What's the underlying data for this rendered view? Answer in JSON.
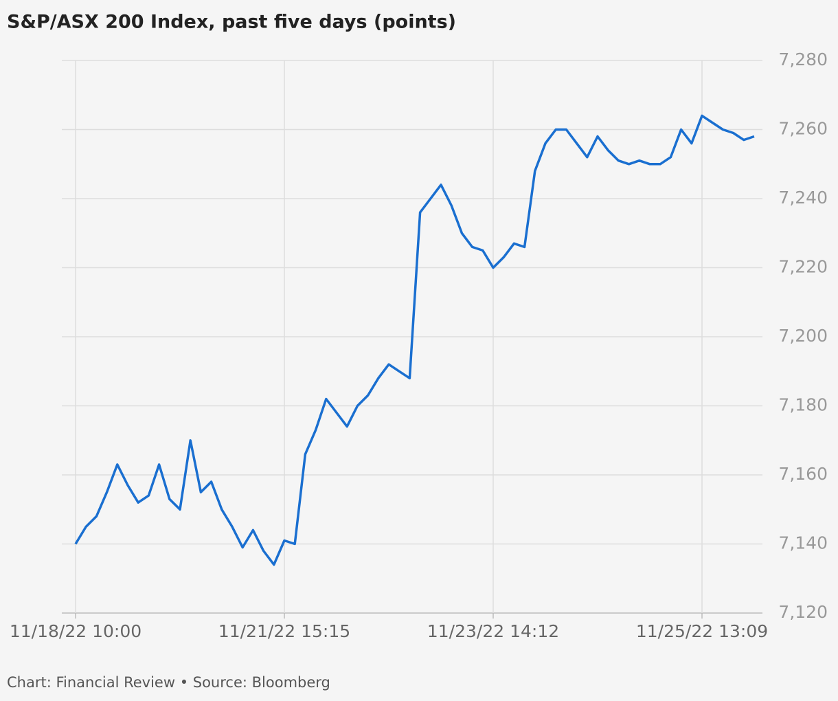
{
  "chart_data": {
    "type": "line",
    "title": "S&P/ASX 200 Index, past five days (points)",
    "footnote": "Chart: Financial Review • Source: Bloomberg",
    "categories": [
      "11/18/22 10:00",
      null,
      null,
      null,
      null,
      null,
      null,
      null,
      null,
      null,
      null,
      null,
      null,
      null,
      null,
      null,
      null,
      null,
      null,
      null,
      "11/21/22 15:15",
      null,
      null,
      null,
      null,
      null,
      null,
      null,
      null,
      null,
      null,
      null,
      null,
      null,
      null,
      null,
      null,
      null,
      null,
      null,
      "11/23/22 14:12",
      null,
      null,
      null,
      null,
      null,
      null,
      null,
      null,
      null,
      null,
      null,
      null,
      null,
      null,
      null,
      null,
      null,
      null,
      null,
      "11/25/22 13:09",
      null,
      null,
      null,
      null,
      null
    ],
    "series": [
      {
        "name": "S&P/ASX 200",
        "color": "#1a6fd0",
        "values": [
          7140,
          7145,
          7148,
          7155,
          7163,
          7157,
          7152,
          7154,
          7163,
          7153,
          7150,
          7170,
          7155,
          7158,
          7150,
          7145,
          7139,
          7144,
          7138,
          7134,
          7141,
          7140,
          7166,
          7173,
          7182,
          7178,
          7174,
          7180,
          7183,
          7188,
          7192,
          7190,
          7188,
          7236,
          7240,
          7244,
          7238,
          7230,
          7226,
          7225,
          7220,
          7223,
          7227,
          7226,
          7248,
          7256,
          7260,
          7260,
          7256,
          7252,
          7258,
          7254,
          7251,
          7250,
          7251,
          7250,
          7250,
          7252,
          7260,
          7256,
          7264,
          7262,
          7260,
          7259,
          7257,
          7258
        ]
      }
    ],
    "ylim": [
      7120,
      7280
    ],
    "yticks": [
      {
        "value": 7120,
        "label": "7,120"
      },
      {
        "value": 7140,
        "label": "7,140"
      },
      {
        "value": 7160,
        "label": "7,160"
      },
      {
        "value": 7180,
        "label": "7,180"
      },
      {
        "value": 7200,
        "label": "7,200"
      },
      {
        "value": 7220,
        "label": "7,220"
      },
      {
        "value": 7240,
        "label": "7,240"
      },
      {
        "value": 7260,
        "label": "7,260"
      },
      {
        "value": 7280,
        "label": "7,280"
      }
    ],
    "grid": true
  }
}
